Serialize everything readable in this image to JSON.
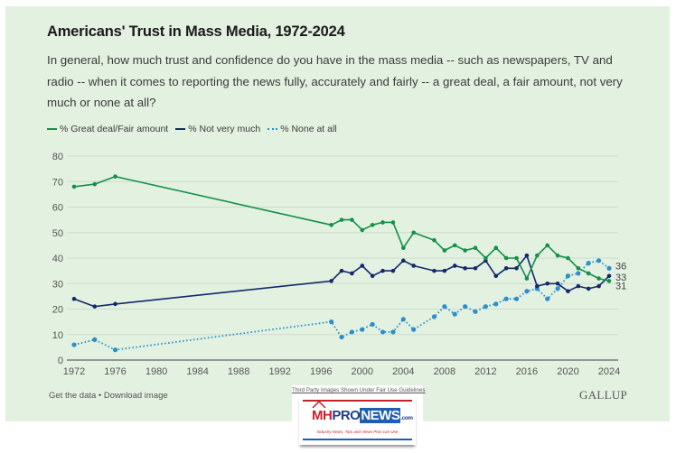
{
  "header": {
    "title": "Americans' Trust in Mass Media, 1972-2024",
    "question": "In general, how much trust and confidence do you have in the mass media -- such as newspapers, TV and radio -- when it comes to reporting the news fully, accurately and fairly -- a great deal, a fair amount, not very much or none at all?"
  },
  "legend": [
    {
      "label": "% Great deal/Fair amount",
      "color": "#13904a",
      "style": "solid"
    },
    {
      "label": "% Not very much",
      "color": "#13296b",
      "style": "solid"
    },
    {
      "label": "% None at all",
      "color": "#2b8fcb",
      "style": "dotted"
    }
  ],
  "footer": {
    "get_data": "Get the data",
    "separator": " • ",
    "download": "Download image",
    "brand": "GALLUP"
  },
  "watermark": {
    "caption": "Third Party Images Shown Under Fair Use Guidelines",
    "logo_mh": "MH",
    "logo_pro": "PRO",
    "logo_news": "NEWS",
    "logo_com": ".com",
    "tagline": "Industry News, Tips and Views Pros can Use"
  },
  "chart_data": {
    "type": "line",
    "title": "Americans' Trust in Mass Media, 1972-2024",
    "xlabel": "",
    "ylabel": "",
    "xlim": [
      1972,
      2024
    ],
    "ylim": [
      0,
      80
    ],
    "grid": true,
    "legend_position": "top-left",
    "x_ticks": [
      1972,
      1976,
      1980,
      1984,
      1988,
      1992,
      1996,
      2000,
      2004,
      2008,
      2012,
      2016,
      2020,
      2024
    ],
    "y_ticks": [
      0,
      10,
      20,
      30,
      40,
      50,
      60,
      70,
      80
    ],
    "x": [
      1972,
      1974,
      1976,
      1997,
      1998,
      1999,
      2000,
      2001,
      2002,
      2003,
      2004,
      2005,
      2007,
      2008,
      2009,
      2010,
      2011,
      2012,
      2013,
      2014,
      2015,
      2016,
      2017,
      2018,
      2019,
      2020,
      2021,
      2022,
      2023,
      2024
    ],
    "series": [
      {
        "name": "% Great deal/Fair amount",
        "color": "#13904a",
        "style": "solid",
        "values": [
          68,
          69,
          72,
          53,
          55,
          55,
          51,
          53,
          54,
          54,
          44,
          50,
          47,
          43,
          45,
          43,
          44,
          40,
          44,
          40,
          40,
          32,
          41,
          45,
          41,
          40,
          36,
          34,
          32,
          31
        ],
        "end_label": "31"
      },
      {
        "name": "% Not very much",
        "color": "#13296b",
        "style": "solid",
        "values": [
          24,
          21,
          22,
          31,
          35,
          34,
          37,
          33,
          35,
          35,
          39,
          37,
          35,
          35,
          37,
          36,
          36,
          39,
          33,
          36,
          36,
          41,
          29,
          30,
          30,
          27,
          29,
          28,
          29,
          33
        ],
        "end_label": "33"
      },
      {
        "name": "% None at all",
        "color": "#2b8fcb",
        "style": "dotted",
        "values": [
          6,
          8,
          4,
          15,
          9,
          11,
          12,
          14,
          11,
          11,
          16,
          12,
          17,
          21,
          18,
          21,
          19,
          21,
          22,
          24,
          24,
          27,
          28,
          24,
          28,
          33,
          34,
          38,
          39,
          36
        ],
        "end_label": "36"
      }
    ]
  }
}
